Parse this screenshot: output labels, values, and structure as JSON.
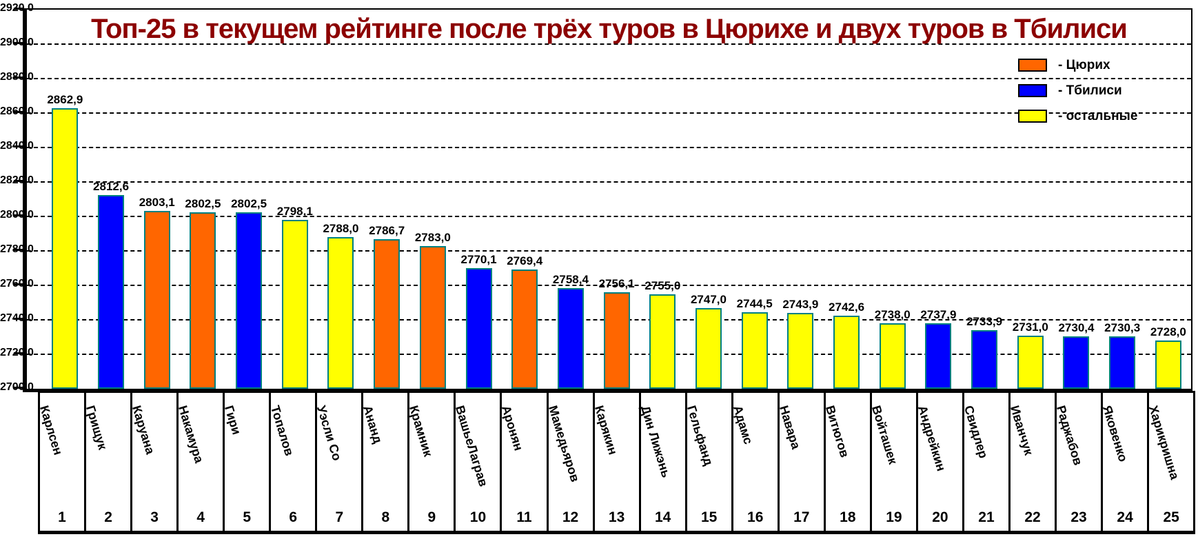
{
  "title": {
    "text": "Топ-25 в текущем рейтинге после трёх туров в Цюрихе и двух туров в Тбилиси",
    "color": "#8C0000"
  },
  "legend": {
    "items": [
      {
        "key": "zurich",
        "label": "- Цюрих",
        "color": "#FF6600"
      },
      {
        "key": "tbilisi",
        "label": "- Тбилиси",
        "color": "#0000FF"
      },
      {
        "key": "others",
        "label": "- остальные",
        "color": "#FFFF00"
      }
    ]
  },
  "y_axis": {
    "min": 2700,
    "max": 2920,
    "step": 20,
    "tick_labels": [
      "2920,0",
      "2900,0",
      "2880,0",
      "2860,0",
      "2840,0",
      "2820,0",
      "2800,0",
      "2780,0",
      "2760,0",
      "2740,0",
      "2720,0",
      "2700,0"
    ]
  },
  "chart_data": {
    "type": "bar",
    "title": "Топ-25 в текущем рейтинге после трёх туров в Цюрихе и двух туров в Тбилиси",
    "xlabel": "",
    "ylabel": "",
    "ylim": [
      2700,
      2920
    ],
    "grid": "horizontal-dashed",
    "legend_position": "top-right",
    "bar_border_color": "#008080",
    "categories": [
      "Карлсен",
      "Грищук",
      "Каруана",
      "Накамура",
      "Гири",
      "Топалов",
      "Уэсли Со",
      "Ананд",
      "Крамник",
      "ВашьеЛаграв",
      "Аронян",
      "Мамедьяров",
      "Карякин",
      "Дин Лижэнь",
      "Гельфанд",
      "Адамс",
      "Навара",
      "Витюгов",
      "Войташек",
      "Андрейкин",
      "Свидлер",
      "Иванчук",
      "Раджабов",
      "Яковенко",
      "Харикришна"
    ],
    "ranks": [
      1,
      2,
      3,
      4,
      5,
      6,
      7,
      8,
      9,
      10,
      11,
      12,
      13,
      14,
      15,
      16,
      17,
      18,
      19,
      20,
      21,
      22,
      23,
      24,
      25
    ],
    "values": [
      2862.9,
      2812.6,
      2803.1,
      2802.5,
      2802.5,
      2798.1,
      2788.0,
      2786.7,
      2783.0,
      2770.1,
      2769.4,
      2758.4,
      2756.1,
      2755.0,
      2747.0,
      2744.5,
      2743.9,
      2742.6,
      2738.0,
      2737.9,
      2733.9,
      2731.0,
      2730.4,
      2730.3,
      2728.0
    ],
    "value_labels": [
      "2862,9",
      "2812,6",
      "2803,1",
      "2802,5",
      "2802,5",
      "2798,1",
      "2788,0",
      "2786,7",
      "2783,0",
      "2770,1",
      "2769,4",
      "2758,4",
      "2756,1",
      "2755,0",
      "2747,0",
      "2744,5",
      "2743,9",
      "2742,6",
      "2738,0",
      "2737,9",
      "2733,9",
      "2731,0",
      "2730,4",
      "2730,3",
      "2728,0"
    ],
    "groups": [
      "others",
      "tbilisi",
      "zurich",
      "zurich",
      "tbilisi",
      "others",
      "others",
      "zurich",
      "zurich",
      "tbilisi",
      "zurich",
      "tbilisi",
      "zurich",
      "others",
      "others",
      "others",
      "others",
      "others",
      "others",
      "tbilisi",
      "tbilisi",
      "others",
      "tbilisi",
      "tbilisi",
      "others"
    ]
  }
}
